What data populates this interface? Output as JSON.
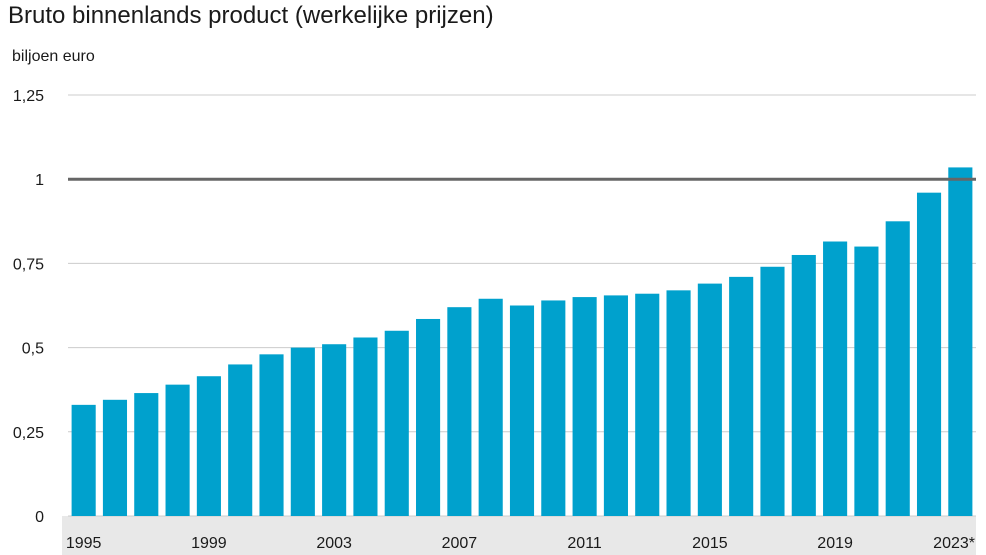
{
  "title": "Bruto binnenlands product (werkelijke prijzen)",
  "unit_label": "biljoen euro",
  "colors": {
    "bar": "#00a1cd",
    "grid": "#cccccc",
    "reference_line": "#666666",
    "axis_band": "#e8e8e8"
  },
  "chart_data": {
    "type": "bar",
    "title": "Bruto binnenlands product (werkelijke prijzen)",
    "ylabel": "biljoen euro",
    "xlabel": "",
    "ylim": [
      0,
      1.25
    ],
    "yticks": [
      0,
      0.25,
      0.5,
      0.75,
      1,
      1.25
    ],
    "ytick_labels": [
      "0",
      "0,25",
      "0,5",
      "0,75",
      "1",
      "1,25"
    ],
    "reference_line": 1,
    "grid": true,
    "categories": [
      "1995",
      "1996",
      "1997",
      "1998",
      "1999",
      "2000",
      "2001",
      "2002",
      "2003",
      "2004",
      "2005",
      "2006",
      "2007",
      "2008",
      "2009",
      "2010",
      "2011",
      "2012",
      "2013",
      "2014",
      "2015",
      "2016",
      "2017",
      "2018",
      "2019",
      "2020",
      "2021",
      "2022",
      "2023*"
    ],
    "xtick_labels": [
      "1995",
      "1999",
      "2003",
      "2007",
      "2011",
      "2015",
      "2019",
      "2023*"
    ],
    "values": [
      0.33,
      0.345,
      0.365,
      0.39,
      0.415,
      0.45,
      0.48,
      0.5,
      0.51,
      0.53,
      0.55,
      0.585,
      0.62,
      0.645,
      0.625,
      0.64,
      0.65,
      0.655,
      0.66,
      0.67,
      0.69,
      0.71,
      0.74,
      0.775,
      0.815,
      0.8,
      0.875,
      0.96,
      1.035
    ]
  }
}
